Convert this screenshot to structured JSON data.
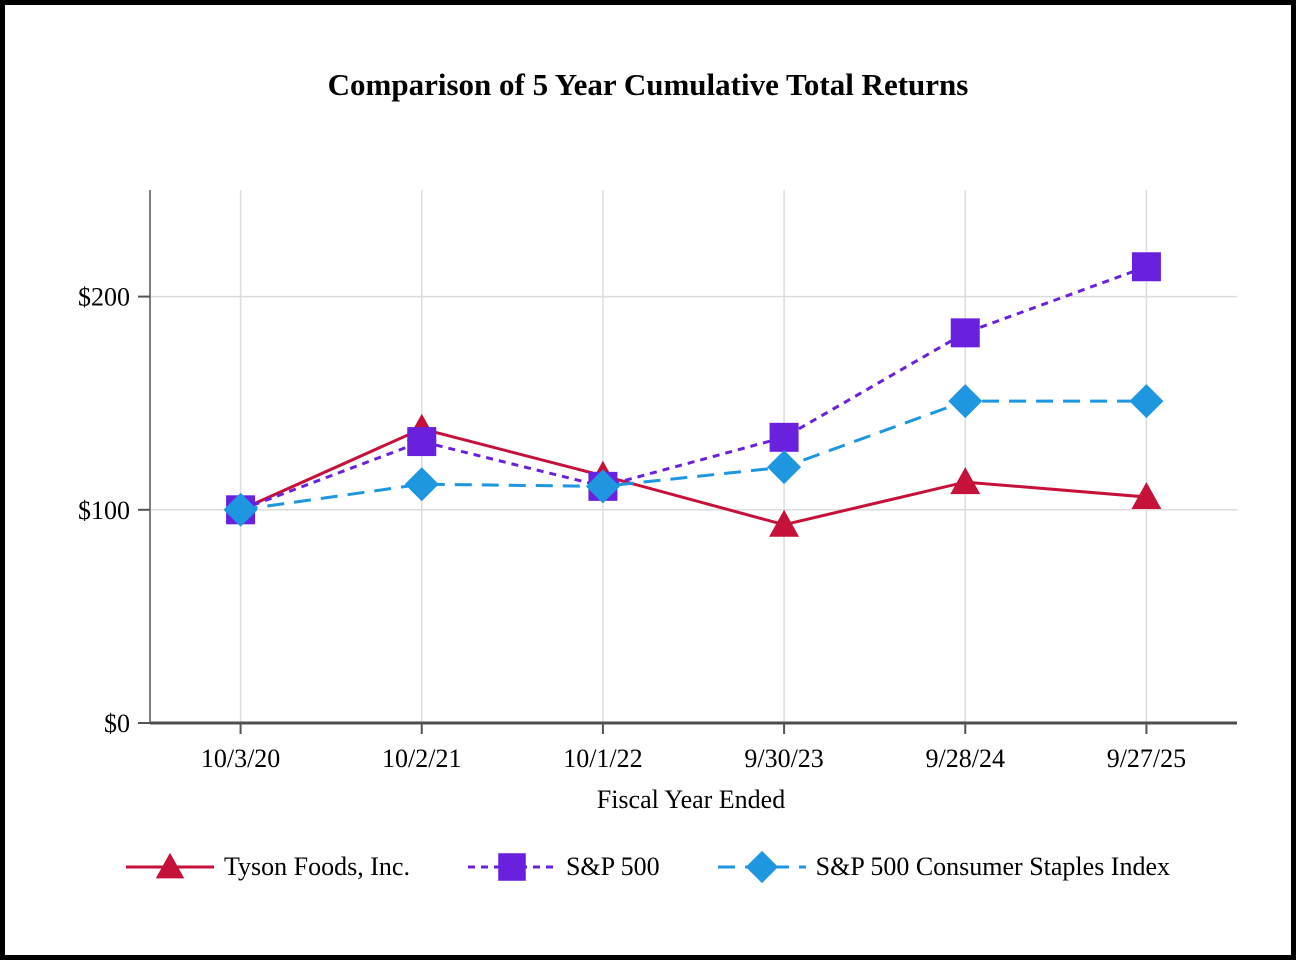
{
  "figure": {
    "border_color": "#000000",
    "background_color": "#ffffff"
  },
  "chart_data": {
    "type": "line",
    "title": "Comparison of 5 Year Cumulative Total Returns",
    "xlabel": "Fiscal Year Ended",
    "ylabel": "",
    "categories": [
      "10/3/20",
      "10/2/21",
      "10/1/22",
      "9/30/23",
      "9/28/24",
      "9/27/25"
    ],
    "y_ticks": [
      {
        "value": 0,
        "label": "$0"
      },
      {
        "value": 100,
        "label": "$100"
      },
      {
        "value": 200,
        "label": "$200"
      }
    ],
    "ylim": [
      0,
      250
    ],
    "grid": true,
    "gridline_color": "#dcdcdc",
    "spine_color": "#808080",
    "bottom_axis_color": "#4d4d4d",
    "legend_position": "bottom",
    "series": [
      {
        "name": "Tyson Foods, Inc.",
        "marker": "triangle",
        "line_style": "solid",
        "color": "#C6113B",
        "values": [
          100,
          138,
          116,
          93,
          113,
          106
        ]
      },
      {
        "name": "S&P 500",
        "marker": "square",
        "line_style": "dashed-short",
        "color": "#6A21DE",
        "values": [
          100,
          132,
          111,
          134,
          183,
          214
        ]
      },
      {
        "name": "S&P 500 Consumer Staples Index",
        "marker": "diamond",
        "line_style": "dashed-long",
        "color": "#1E96E0",
        "values": [
          100,
          112,
          111,
          120,
          151,
          151
        ]
      }
    ]
  }
}
